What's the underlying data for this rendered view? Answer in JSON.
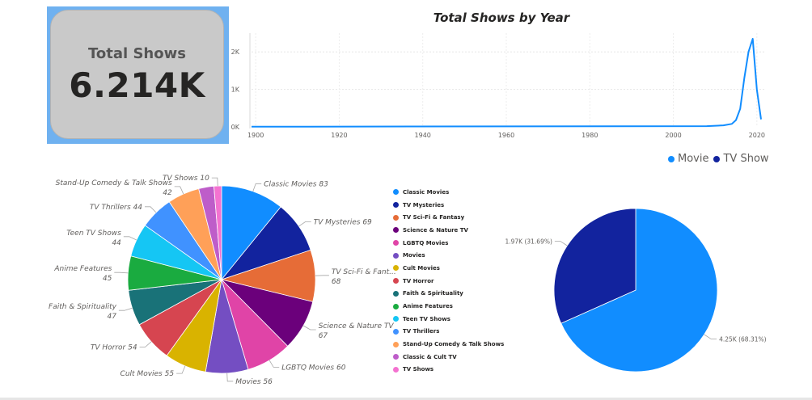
{
  "card": {
    "label": "Total Shows",
    "value": "6.214K"
  },
  "chart_data": [
    {
      "type": "line",
      "title": "Total Shows by Year",
      "x_ticks": [
        "1900",
        "1920",
        "1940",
        "1960",
        "1980",
        "2000",
        "2020"
      ],
      "y_ticks": [
        "0K",
        "1K",
        "2K"
      ],
      "xlim": [
        1899,
        2021
      ],
      "ylim": [
        0,
        2500
      ],
      "grid": true,
      "color": "#118dff",
      "x": [
        1899,
        2008,
        2012,
        2014,
        2015,
        2016,
        2017,
        2018,
        2019,
        2020,
        2021
      ],
      "y": [
        5,
        20,
        40,
        80,
        180,
        480,
        1300,
        2000,
        2350,
        1000,
        200
      ]
    },
    {
      "type": "pie",
      "categories": [
        "Classic Movies",
        "TV Mysteries",
        "TV Sci-Fi & Fantasy",
        "Science & Nature TV",
        "LGBTQ Movies",
        "Movies",
        "Cult Movies",
        "TV Horror",
        "Faith & Spirituality",
        "Anime Features",
        "Teen TV Shows",
        "TV Thrillers",
        "Stand-Up Comedy & Talk Shows",
        "Classic & Cult TV",
        "TV Shows"
      ],
      "values": [
        83,
        69,
        68,
        67,
        60,
        56,
        55,
        54,
        47,
        45,
        44,
        44,
        42,
        20,
        10
      ],
      "colors": [
        "#118dff",
        "#12239e",
        "#e66c37",
        "#6b007b",
        "#e044a7",
        "#744ec2",
        "#d9b300",
        "#d64550",
        "#197278",
        "#1aab40",
        "#15c6f4",
        "#4092ff",
        "#ffa058",
        "#be5dc9",
        "#f472d0"
      ],
      "slice_labels": [
        [
          "Classic Movies 83"
        ],
        [
          "TV Mysteries 69"
        ],
        [
          "TV Sci-Fi & Fant...",
          "68"
        ],
        [
          "Science & Nature TV",
          "67"
        ],
        [
          "LGBTQ Movies 60"
        ],
        [
          "Movies 56"
        ],
        [
          "Cult Movies 55"
        ],
        [
          "TV Horror 54"
        ],
        [
          "Faith & Spirituality",
          "47"
        ],
        [
          "Anime Features",
          "45"
        ],
        [
          "Teen TV Shows",
          "44"
        ],
        [
          "TV Thrillers 44"
        ],
        [
          "Stand-Up Comedy & Talk Shows",
          "42"
        ],
        [],
        [
          "TV Shows 10"
        ]
      ],
      "legend": [
        "Classic Movies",
        "TV Mysteries",
        "TV Sci-Fi & Fantasy",
        "Science & Nature TV",
        "LGBTQ Movies",
        "Movies",
        "Cult Movies",
        "TV Horror",
        "Faith & Spirituality",
        "Anime Features",
        "Teen TV Shows",
        "TV Thrillers",
        "Stand-Up Comedy & Talk Shows",
        "Classic & Cult TV",
        "TV Shows"
      ]
    },
    {
      "type": "pie",
      "series": [
        {
          "name": "Movie",
          "value": 4250,
          "percent": 68.31,
          "label": "4.25K (68.31%)",
          "color": "#118dff"
        },
        {
          "name": "TV Show",
          "value": 1970,
          "percent": 31.69,
          "label": "1.97K (31.69%)",
          "color": "#12239e"
        }
      ],
      "legend_position": "top-right"
    }
  ]
}
